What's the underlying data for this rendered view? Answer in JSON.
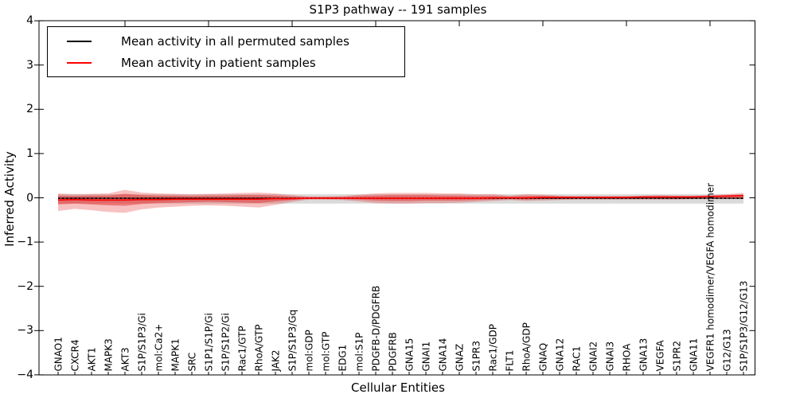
{
  "title": "S1P3 pathway -- 191 samples",
  "axes": {
    "ylabel": "Inferred Activity",
    "xlabel": "Cellular Entities",
    "ytick_labels": [
      "4",
      "3",
      "2",
      "1",
      "0",
      "−1",
      "−2",
      "−3",
      "−4"
    ],
    "ytick_values": [
      4,
      3,
      2,
      1,
      0,
      -1,
      -2,
      -3,
      -4
    ]
  },
  "legend": {
    "items": [
      {
        "label": "Mean activity in all permuted samples",
        "color": "#000000"
      },
      {
        "label": "Mean activity in patient samples",
        "color": "#ff0000"
      }
    ]
  },
  "chart_data": {
    "type": "line",
    "title": "S1P3 pathway -- 191 samples",
    "xlabel": "Cellular Entities",
    "ylabel": "Inferred Activity",
    "ylim": [
      -4,
      4
    ],
    "grid": false,
    "legend_position": "upper left",
    "colors": {
      "permuted_line": "#000000",
      "patient_line": "#ff0000",
      "patient_band": "#e62222",
      "permuted_band": "#999999"
    },
    "entities": [
      "GNAO1",
      "CXCR4",
      "AKT1",
      "MAPK3",
      "AKT3",
      "S1P/S1P3/Gi",
      "mol:Ca2+",
      "MAPK1",
      "SRC",
      "S1P1/S1P/Gi",
      "S1P/S1P2/Gi",
      "Rac1/GTP",
      "RhoA/GTP",
      "JAK2",
      "S1P/S1P3/Gq",
      "mol:GDP",
      "mol:GTP",
      "EDG1",
      "mol:S1P",
      "PDGFB-D/PDGFRB",
      "PDGFRB",
      "GNA15",
      "GNAI1",
      "GNA14",
      "GNAZ",
      "S1PR3",
      "Rac1/GDP",
      "FLT1",
      "RhoA/GDP",
      "GNAQ",
      "GNA12",
      "RAC1",
      "GNAI2",
      "GNAI3",
      "RHOA",
      "GNA13",
      "VEGFA",
      "S1PR2",
      "GNA11",
      "VEGFR1 homodimer/VEGFA homodimer",
      "G12/G13",
      "S1P/S1P3/G12/G13"
    ],
    "major_tick_indices": [
      4,
      9,
      14,
      19,
      24,
      29,
      34,
      39
    ],
    "series": [
      {
        "name": "Mean activity in all permuted samples",
        "values": [
          -0.01,
          -0.01,
          -0.01,
          -0.01,
          -0.01,
          -0.01,
          -0.01,
          -0.01,
          -0.01,
          -0.01,
          -0.01,
          -0.01,
          -0.01,
          -0.01,
          -0.01,
          -0.01,
          -0.01,
          -0.01,
          -0.01,
          -0.01,
          -0.01,
          -0.01,
          -0.01,
          -0.01,
          -0.01,
          -0.01,
          -0.01,
          -0.01,
          -0.01,
          -0.01,
          -0.01,
          -0.01,
          -0.01,
          -0.01,
          -0.01,
          -0.01,
          -0.01,
          -0.01,
          -0.01,
          -0.01,
          -0.01,
          -0.01
        ]
      },
      {
        "name": "Mean activity in patient samples",
        "values": [
          -0.05,
          -0.04,
          -0.05,
          -0.05,
          -0.05,
          -0.04,
          -0.04,
          -0.03,
          -0.03,
          -0.03,
          -0.03,
          -0.03,
          -0.03,
          -0.02,
          -0.02,
          -0.01,
          -0.01,
          -0.01,
          -0.01,
          -0.01,
          -0.01,
          -0.01,
          -0.01,
          -0.01,
          -0.01,
          -0.01,
          0,
          0,
          0,
          0.01,
          0.01,
          0.01,
          0.01,
          0.01,
          0.01,
          0.02,
          0.02,
          0.02,
          0.02,
          0.03,
          0.04,
          0.05
        ]
      }
    ],
    "bands": [
      {
        "name": "permuted-range",
        "upper": [
          0.08,
          0.08,
          0.08,
          0.08,
          0.08,
          0.08,
          0.08,
          0.08,
          0.08,
          0.08,
          0.08,
          0.08,
          0.08,
          0.08,
          0.08,
          0.08,
          0.08,
          0.08,
          0.08,
          0.08,
          0.08,
          0.08,
          0.08,
          0.08,
          0.08,
          0.08,
          0.08,
          0.08,
          0.08,
          0.08,
          0.08,
          0.08,
          0.08,
          0.08,
          0.08,
          0.08,
          0.08,
          0.08,
          0.08,
          0.08,
          0.08,
          0.08
        ],
        "lower": [
          -0.13,
          -0.13,
          -0.13,
          -0.13,
          -0.13,
          -0.13,
          -0.13,
          -0.13,
          -0.13,
          -0.13,
          -0.13,
          -0.13,
          -0.13,
          -0.13,
          -0.13,
          -0.13,
          -0.13,
          -0.13,
          -0.13,
          -0.13,
          -0.13,
          -0.13,
          -0.13,
          -0.13,
          -0.13,
          -0.13,
          -0.13,
          -0.13,
          -0.13,
          -0.13,
          -0.13,
          -0.13,
          -0.13,
          -0.13,
          -0.13,
          -0.13,
          -0.13,
          -0.13,
          -0.13,
          -0.13,
          -0.13,
          -0.13
        ]
      },
      {
        "name": "patient-outer",
        "upper": [
          0.1,
          0.08,
          0.09,
          0.1,
          0.18,
          0.12,
          0.1,
          0.09,
          0.08,
          0.09,
          0.1,
          0.11,
          0.12,
          0.1,
          0.06,
          0.03,
          0.03,
          0.04,
          0.07,
          0.1,
          0.11,
          0.11,
          0.11,
          0.1,
          0.1,
          0.08,
          0.08,
          0.05,
          0.08,
          0.07,
          0.05,
          0.04,
          0.04,
          0.04,
          0.04,
          0.05,
          0.06,
          0.05,
          0.05,
          0.06,
          0.08,
          0.11
        ],
        "lower": [
          -0.3,
          -0.25,
          -0.28,
          -0.32,
          -0.34,
          -0.26,
          -0.22,
          -0.2,
          -0.18,
          -0.17,
          -0.18,
          -0.2,
          -0.22,
          -0.16,
          -0.09,
          -0.04,
          -0.04,
          -0.05,
          -0.08,
          -0.12,
          -0.13,
          -0.13,
          -0.12,
          -0.12,
          -0.11,
          -0.09,
          -0.07,
          -0.05,
          -0.07,
          -0.06,
          -0.05,
          -0.04,
          -0.04,
          -0.04,
          -0.04,
          -0.04,
          -0.04,
          -0.04,
          -0.03,
          -0.03,
          -0.03,
          -0.03
        ]
      },
      {
        "name": "patient-inner",
        "upper": [
          0.05,
          0.04,
          0.05,
          0.05,
          0.09,
          0.06,
          0.05,
          0.05,
          0.04,
          0.05,
          0.05,
          0.06,
          0.06,
          0.05,
          0.03,
          0.02,
          0.02,
          0.02,
          0.04,
          0.05,
          0.06,
          0.06,
          0.06,
          0.05,
          0.05,
          0.04,
          0.04,
          0.03,
          0.04,
          0.04,
          0.03,
          0.02,
          0.02,
          0.02,
          0.02,
          0.03,
          0.03,
          0.03,
          0.03,
          0.03,
          0.04,
          0.06
        ],
        "lower": [
          -0.15,
          -0.13,
          -0.15,
          -0.17,
          -0.18,
          -0.14,
          -0.12,
          -0.11,
          -0.1,
          -0.09,
          -0.1,
          -0.11,
          -0.12,
          -0.08,
          -0.05,
          -0.02,
          -0.02,
          -0.03,
          -0.04,
          -0.06,
          -0.07,
          -0.07,
          -0.06,
          -0.06,
          -0.06,
          -0.05,
          -0.04,
          -0.03,
          -0.04,
          -0.03,
          -0.03,
          -0.02,
          -0.02,
          -0.02,
          -0.02,
          -0.02,
          -0.02,
          -0.02,
          -0.02,
          -0.01,
          -0.01,
          -0.01
        ]
      }
    ]
  }
}
